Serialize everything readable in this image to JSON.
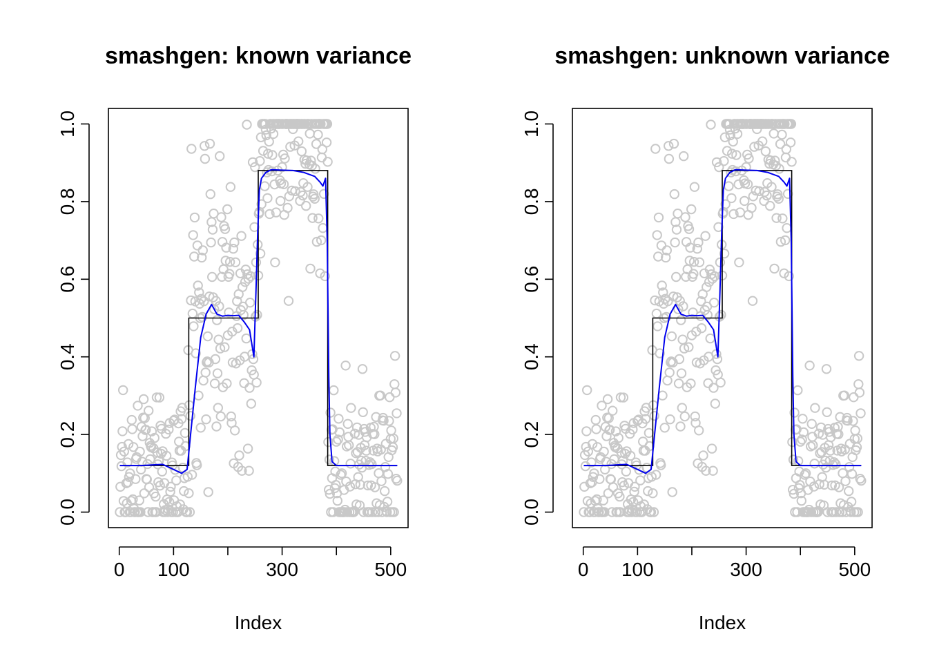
{
  "chart_data": [
    {
      "type": "scatter",
      "title": "smashgen: known variance",
      "xlabel": "Index",
      "ylabel": "",
      "xlim": [
        -20,
        532
      ],
      "ylim": [
        -0.04,
        1.04
      ],
      "x_ticks": [
        0,
        100,
        200,
        300,
        400,
        500
      ],
      "x_tick_labels": [
        "0",
        "100",
        "",
        "300",
        "",
        "500"
      ],
      "y_ticks": [
        0.0,
        0.2,
        0.4,
        0.6,
        0.8,
        1.0
      ],
      "y_tick_labels": [
        "0.0",
        "0.2",
        "0.4",
        "0.6",
        "0.8",
        "1.0"
      ],
      "grid": false,
      "colors": {
        "points": "#c8c8c8",
        "truth": "#000000",
        "estimate": "#0000ee"
      },
      "series": [
        {
          "kind": "points",
          "n": 512,
          "shape": "open-circle"
        },
        {
          "kind": "step",
          "x": [
            1,
            128,
            128,
            256,
            256,
            384,
            384,
            512
          ],
          "y": [
            0.12,
            0.12,
            0.5,
            0.5,
            0.88,
            0.88,
            0.12,
            0.12
          ]
        },
        {
          "kind": "line",
          "x": [
            1,
            40,
            80,
            100,
            115,
            125,
            130,
            140,
            150,
            160,
            170,
            180,
            190,
            200,
            210,
            220,
            230,
            240,
            248,
            252,
            255,
            258,
            262,
            270,
            280,
            300,
            320,
            340,
            360,
            370,
            375,
            380,
            383,
            386,
            388,
            392,
            400,
            450,
            512
          ],
          "y": [
            0.12,
            0.12,
            0.123,
            0.11,
            0.1,
            0.11,
            0.18,
            0.32,
            0.45,
            0.51,
            0.535,
            0.51,
            0.505,
            0.507,
            0.506,
            0.507,
            0.49,
            0.47,
            0.4,
            0.58,
            0.72,
            0.83,
            0.86,
            0.875,
            0.882,
            0.881,
            0.88,
            0.875,
            0.865,
            0.85,
            0.84,
            0.86,
            0.7,
            0.35,
            0.2,
            0.13,
            0.12,
            0.12,
            0.12
          ]
        }
      ]
    },
    {
      "type": "scatter",
      "title": "smashgen: unknown variance",
      "xlabel": "Index",
      "ylabel": "",
      "xlim": [
        -20,
        532
      ],
      "ylim": [
        -0.04,
        1.04
      ],
      "x_ticks": [
        0,
        100,
        200,
        300,
        400,
        500
      ],
      "x_tick_labels": [
        "0",
        "100",
        "",
        "300",
        "",
        "500"
      ],
      "y_ticks": [
        0.0,
        0.2,
        0.4,
        0.6,
        0.8,
        1.0
      ],
      "y_tick_labels": [
        "0.0",
        "0.2",
        "0.4",
        "0.6",
        "0.8",
        "1.0"
      ],
      "grid": false,
      "colors": {
        "points": "#c8c8c8",
        "truth": "#000000",
        "estimate": "#0000ee"
      },
      "series": [
        {
          "kind": "points",
          "n": 512,
          "shape": "open-circle"
        },
        {
          "kind": "step",
          "x": [
            1,
            128,
            128,
            256,
            256,
            384,
            384,
            512
          ],
          "y": [
            0.12,
            0.12,
            0.5,
            0.5,
            0.88,
            0.88,
            0.12,
            0.12
          ]
        },
        {
          "kind": "line",
          "x": [
            1,
            40,
            80,
            100,
            115,
            125,
            130,
            140,
            150,
            160,
            170,
            180,
            190,
            200,
            210,
            220,
            230,
            240,
            248,
            252,
            255,
            258,
            262,
            270,
            280,
            300,
            320,
            340,
            360,
            370,
            375,
            380,
            383,
            386,
            388,
            392,
            400,
            450,
            512
          ],
          "y": [
            0.12,
            0.12,
            0.123,
            0.11,
            0.1,
            0.11,
            0.18,
            0.32,
            0.45,
            0.51,
            0.535,
            0.51,
            0.505,
            0.507,
            0.506,
            0.507,
            0.49,
            0.47,
            0.4,
            0.58,
            0.72,
            0.83,
            0.86,
            0.875,
            0.882,
            0.881,
            0.88,
            0.875,
            0.865,
            0.85,
            0.84,
            0.86,
            0.7,
            0.35,
            0.2,
            0.13,
            0.12,
            0.12,
            0.12
          ]
        }
      ]
    }
  ]
}
